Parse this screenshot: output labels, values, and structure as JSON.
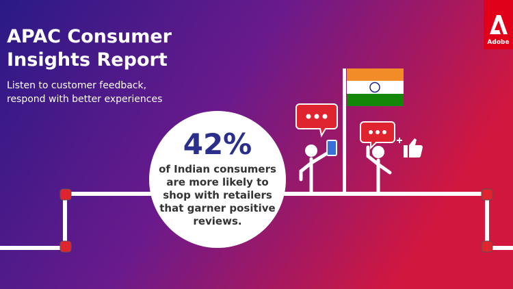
{
  "header": {
    "title_lines": [
      "APAC Consumer",
      "Insights Report"
    ],
    "subtitle_lines": [
      "Listen to customer feedback,",
      "respond with better experiences"
    ]
  },
  "logo": {
    "text": "Adobe"
  },
  "stat": {
    "figure": "42%",
    "description_lines": [
      "of Indian consumers",
      "are more likely to",
      "shop with retailers",
      "that garner positive",
      "reviews."
    ]
  }
}
